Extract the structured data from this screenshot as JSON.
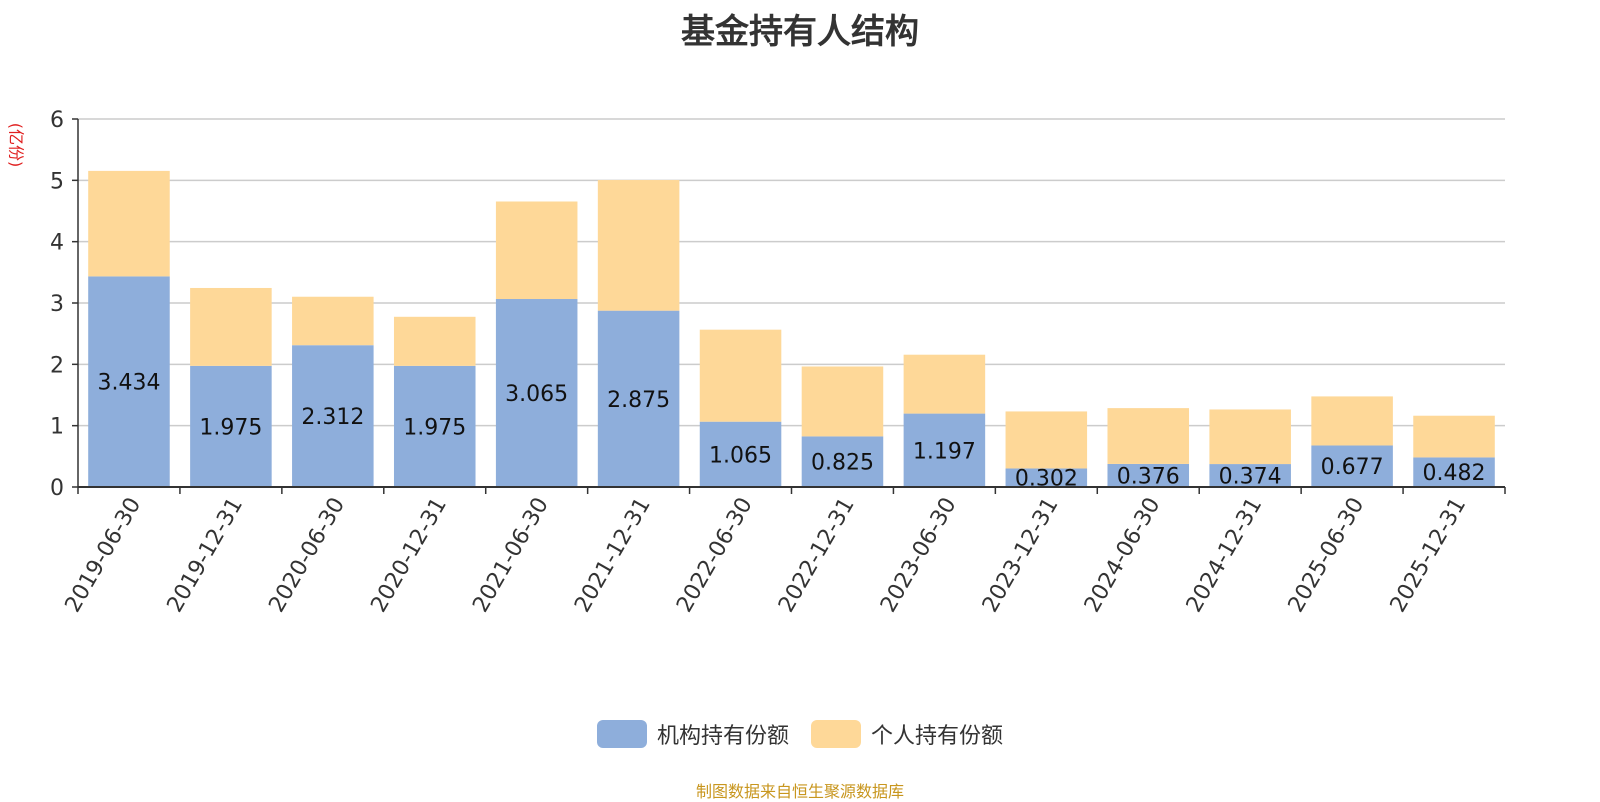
{
  "chart_data": {
    "type": "bar",
    "stacked": true,
    "title": "基金持有人结构",
    "ylabel": "(亿份)",
    "ylim": [
      0,
      6
    ],
    "yticks": [
      0,
      1,
      2,
      3,
      4,
      5,
      6
    ],
    "grid": true,
    "legend_position": "bottom",
    "categories": [
      "2019-06-30",
      "2019-12-31",
      "2020-06-30",
      "2020-12-31",
      "2021-06-30",
      "2021-12-31",
      "2022-06-30",
      "2022-12-31",
      "2023-06-30",
      "2023-12-31",
      "2024-06-30",
      "2024-12-31",
      "2025-06-30",
      "2025-12-31"
    ],
    "series": [
      {
        "name": "机构持有份额",
        "color": "#8eaedb",
        "values": [
          3.434,
          1.975,
          2.312,
          1.975,
          3.065,
          2.875,
          1.065,
          0.825,
          1.197,
          0.302,
          0.376,
          0.374,
          0.677,
          0.482
        ],
        "labels": [
          "3.434",
          "1.975",
          "2.312",
          "1.975",
          "3.065",
          "2.875",
          "1.065",
          "0.825",
          "1.197",
          "0.302",
          "0.376",
          "0.374",
          "0.677",
          "0.482"
        ]
      },
      {
        "name": "个人持有份额",
        "color": "#fed898",
        "values": [
          1.72,
          1.27,
          0.79,
          0.8,
          1.59,
          2.13,
          1.5,
          1.14,
          0.96,
          0.93,
          0.91,
          0.89,
          0.8,
          0.68
        ]
      }
    ]
  },
  "source_text": "制图数据来自恒生聚源数据库"
}
